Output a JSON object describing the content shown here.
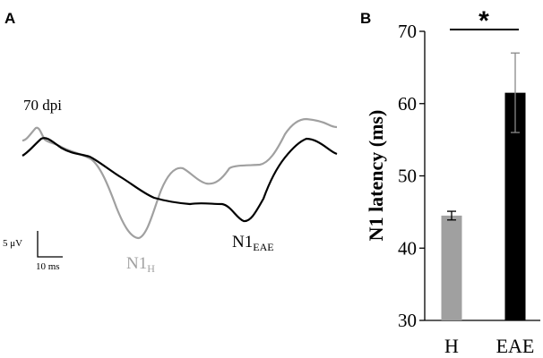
{
  "panels": {
    "a": "A",
    "b": "B"
  },
  "traces": {
    "condition_label": "70 dpi",
    "peak_h": {
      "main": "N1",
      "sub": "H"
    },
    "peak_eae": {
      "main": "N1",
      "sub": "EAE"
    },
    "scale_bar": {
      "voltage": "5 μV",
      "time": "10 ms"
    },
    "colors": {
      "h": "#a0a0a0",
      "eae": "#000000"
    }
  },
  "chart_data": {
    "type": "bar",
    "categories": [
      "H",
      "EAE"
    ],
    "values": [
      44.5,
      61.5
    ],
    "error": [
      0.6,
      5.5
    ],
    "colors": [
      "#a0a0a0",
      "#000000"
    ],
    "ylabel": "N1 latency (ms)",
    "ylim": [
      30,
      70
    ],
    "yticks": [
      30,
      40,
      50,
      60,
      70
    ],
    "significance": "*",
    "grid": false
  }
}
